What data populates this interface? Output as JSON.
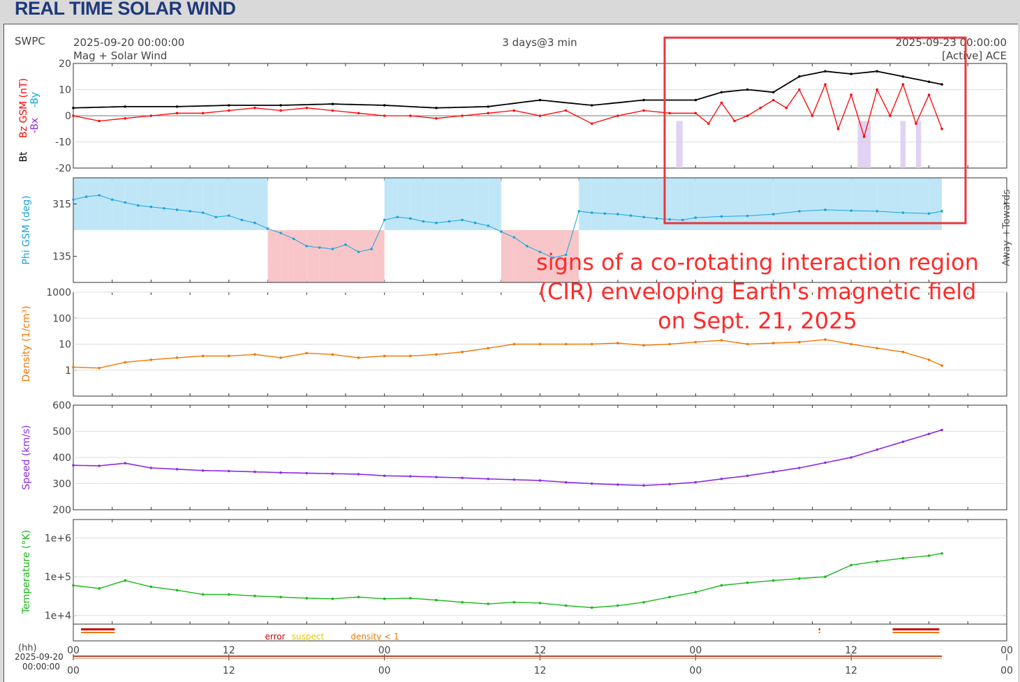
{
  "page": {
    "title": "REAL TIME SOLAR WIND"
  },
  "header": {
    "source": "SWPC",
    "start_time": "2025-09-20 00:00:00",
    "end_time": "2025-09-23 00:00:00",
    "product": "Mag + Solar Wind",
    "span": "3 days@3 min",
    "spacecraft": "[Active] ACE"
  },
  "annotation": {
    "lines": [
      "signs of a co-rotating interaction region",
      "(CIR) enveloping Earth's magnetic field",
      "on Sept. 21, 2025"
    ],
    "color": "#ff2a2a",
    "box_color": "#e8373b"
  },
  "chart_data": [
    {
      "type": "line",
      "panel": "magnetic-field",
      "ylabel_parts": [
        "Bt",
        "-Bx",
        "Bz GSM (nT)",
        "-By"
      ],
      "ylabel_colors": [
        "#000000",
        "#8a2be2",
        "#ff0000",
        "#00aadd"
      ],
      "ylim": [
        -20,
        20
      ],
      "yticks": [
        "20",
        "10",
        "0",
        "-10",
        "-20"
      ],
      "x_unit": "hours since 2025-09-20 00:00:00",
      "series": [
        {
          "name": "Bt",
          "color": "#000000",
          "x": [
            0,
            4,
            8,
            12,
            16,
            20,
            24,
            28,
            32,
            36,
            40,
            44,
            48,
            50,
            52,
            54,
            56,
            58,
            60,
            62,
            64,
            66,
            67
          ],
          "y": [
            3,
            3.5,
            3.5,
            4,
            4,
            4.5,
            4,
            3,
            3.5,
            6,
            4,
            6,
            6,
            9,
            10,
            9,
            15,
            17,
            16,
            17,
            15,
            13,
            12
          ]
        },
        {
          "name": "Bz GSM",
          "color": "#ff0000",
          "x": [
            0,
            2,
            4,
            6,
            8,
            10,
            12,
            14,
            16,
            18,
            20,
            22,
            24,
            26,
            28,
            30,
            32,
            34,
            36,
            38,
            40,
            42,
            44,
            46,
            48,
            49,
            50,
            51,
            52,
            53,
            54,
            55,
            56,
            57,
            58,
            59,
            60,
            61,
            62,
            63,
            64,
            65,
            66,
            67
          ],
          "y": [
            0,
            -2,
            -1,
            0,
            1,
            1,
            2,
            3,
            2,
            3,
            2,
            1,
            0,
            0,
            -1,
            0,
            1,
            2,
            0,
            2,
            -3,
            0,
            2,
            1,
            1,
            -3,
            5,
            -2,
            0,
            3,
            6,
            3,
            10,
            0,
            12,
            -5,
            8,
            -8,
            10,
            0,
            12,
            -3,
            8,
            -5
          ]
        }
      ]
    },
    {
      "type": "scatter",
      "panel": "phi",
      "ylabel": "Phi GSM (deg)",
      "yticks": [
        "315",
        "135"
      ],
      "right_labels": [
        "Towards -",
        "Away +"
      ],
      "ylim": [
        45,
        405
      ],
      "x": [
        0,
        1,
        2,
        3,
        4,
        5,
        6,
        7,
        8,
        9,
        10,
        11,
        12,
        13,
        14,
        15,
        16,
        17,
        18,
        19,
        20,
        21,
        22,
        23,
        24,
        25,
        26,
        27,
        28,
        29,
        30,
        31,
        32,
        33,
        34,
        35,
        36,
        37,
        38,
        39,
        40,
        41,
        42,
        43,
        44,
        45,
        46,
        47,
        48,
        50,
        52,
        54,
        56,
        58,
        60,
        62,
        64,
        66,
        67
      ],
      "values": [
        330,
        340,
        345,
        330,
        320,
        310,
        305,
        300,
        295,
        290,
        285,
        270,
        275,
        260,
        250,
        230,
        215,
        195,
        170,
        165,
        160,
        175,
        150,
        160,
        260,
        270,
        265,
        255,
        250,
        255,
        260,
        250,
        240,
        220,
        200,
        170,
        150,
        130,
        140,
        290,
        285,
        282,
        280,
        275,
        270,
        265,
        262,
        260,
        268,
        272,
        274,
        280,
        290,
        295,
        292,
        290,
        285,
        282,
        290
      ]
    },
    {
      "type": "line",
      "panel": "density",
      "ylabel": "Density (1/cm³)",
      "yscale": "log",
      "yticks": [
        "1000",
        "100",
        "10",
        "1"
      ],
      "ylim": [
        0.1,
        1000
      ],
      "x": [
        0,
        2,
        4,
        6,
        8,
        10,
        12,
        14,
        16,
        18,
        20,
        22,
        24,
        26,
        28,
        30,
        32,
        34,
        36,
        38,
        40,
        42,
        44,
        46,
        48,
        50,
        52,
        54,
        56,
        58,
        60,
        62,
        64,
        66,
        67
      ],
      "values": [
        1.3,
        1.2,
        2,
        2.5,
        3,
        3.5,
        3.5,
        4,
        3,
        4.5,
        4,
        3,
        3.5,
        3.5,
        4,
        5,
        7,
        10,
        10,
        10,
        10,
        11,
        9,
        10,
        12,
        14,
        10,
        11,
        12,
        15,
        10,
        7,
        5,
        2.5,
        1.5
      ]
    },
    {
      "type": "line",
      "panel": "speed",
      "ylabel": "Speed (km/s)",
      "yticks": [
        "600",
        "500",
        "400",
        "300",
        "200"
      ],
      "ylim": [
        200,
        600
      ],
      "x": [
        0,
        2,
        4,
        6,
        8,
        10,
        12,
        14,
        16,
        18,
        20,
        22,
        24,
        26,
        28,
        30,
        32,
        34,
        36,
        38,
        40,
        42,
        44,
        46,
        48,
        50,
        52,
        54,
        56,
        58,
        60,
        62,
        64,
        66,
        67
      ],
      "values": [
        370,
        368,
        378,
        360,
        355,
        350,
        348,
        345,
        342,
        340,
        338,
        336,
        330,
        328,
        325,
        322,
        318,
        315,
        312,
        305,
        300,
        296,
        293,
        298,
        305,
        318,
        330,
        345,
        360,
        380,
        400,
        430,
        460,
        490,
        505
      ]
    },
    {
      "type": "line",
      "panel": "temperature",
      "ylabel": "Temperature (°K)",
      "yscale": "log",
      "yticks": [
        "1e+6",
        "1e+5",
        "1e+4"
      ],
      "ylim": [
        6000,
        3000000
      ],
      "x": [
        0,
        2,
        4,
        6,
        8,
        10,
        12,
        14,
        16,
        18,
        20,
        22,
        24,
        26,
        28,
        30,
        32,
        34,
        36,
        38,
        40,
        42,
        44,
        46,
        48,
        50,
        52,
        54,
        56,
        58,
        60,
        62,
        64,
        66,
        67
      ],
      "values": [
        60000,
        50000,
        80000,
        55000,
        45000,
        35000,
        35000,
        32000,
        30000,
        28000,
        27000,
        30000,
        27000,
        28000,
        25000,
        22000,
        20000,
        22000,
        21000,
        18000,
        16000,
        18000,
        22000,
        30000,
        40000,
        60000,
        70000,
        80000,
        90000,
        100000,
        200000,
        250000,
        300000,
        350000,
        400000
      ]
    }
  ],
  "status_row": {
    "legend": [
      "error",
      "suspect",
      "density < 1"
    ],
    "legend_colors": [
      "#cc0000",
      "#e6c800",
      "#e87a00"
    ]
  },
  "time_axis": {
    "unit_label": "(hh)",
    "date_label": "2025-09-20",
    "time_label": "00:00:00",
    "ticks": [
      "00",
      "12",
      "00",
      "12",
      "00",
      "12",
      "00"
    ],
    "tick_hours": [
      0,
      12,
      24,
      36,
      48,
      60,
      72
    ],
    "data_end_hours": 67
  }
}
